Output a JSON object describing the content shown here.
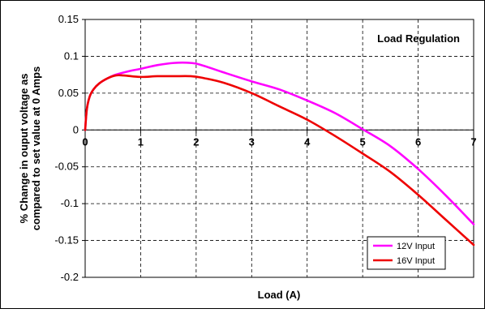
{
  "chart_data": {
    "type": "line",
    "title": "",
    "annotation": "Load Regulation",
    "xlabel": "Load (A)",
    "ylabel_lines": [
      "% Change in ouput  voltage as",
      "compared to set value at 0 Amps"
    ],
    "xlim": [
      0,
      7
    ],
    "ylim": [
      -0.2,
      0.15
    ],
    "xticks": [
      0,
      1,
      2,
      3,
      4,
      5,
      6,
      7
    ],
    "yticks": [
      -0.2,
      -0.15,
      -0.1,
      -0.05,
      0,
      0.05,
      0.1,
      0.15
    ],
    "ytick_labels": [
      "-0.2",
      "-0.15",
      "-0.1",
      "-0.05",
      "0",
      "0.05",
      "0.1",
      "0.15"
    ],
    "grid": true,
    "legend_position": "bottom-right",
    "series": [
      {
        "name": "12V Input",
        "color": "#ff00ff",
        "x": [
          0,
          0.03,
          0.08,
          0.15,
          0.25,
          0.4,
          0.55,
          0.8,
          1.0,
          1.3,
          1.6,
          1.9,
          2.1,
          2.5,
          3.0,
          3.5,
          4.0,
          4.5,
          5.0,
          5.5,
          6.0,
          6.5,
          7.0
        ],
        "y": [
          0,
          0.028,
          0.045,
          0.055,
          0.063,
          0.07,
          0.075,
          0.08,
          0.083,
          0.088,
          0.091,
          0.091,
          0.088,
          0.078,
          0.066,
          0.055,
          0.04,
          0.023,
          0.001,
          -0.022,
          -0.053,
          -0.089,
          -0.128
        ]
      },
      {
        "name": "16V Input",
        "color": "#ee0000",
        "x": [
          0,
          0.03,
          0.08,
          0.15,
          0.25,
          0.4,
          0.55,
          0.7,
          1.0,
          1.3,
          1.6,
          1.9,
          2.1,
          2.5,
          3.0,
          3.5,
          4.0,
          4.5,
          5.0,
          5.5,
          6.0,
          6.5,
          7.0
        ],
        "y": [
          0,
          0.028,
          0.045,
          0.055,
          0.063,
          0.07,
          0.074,
          0.074,
          0.072,
          0.073,
          0.073,
          0.073,
          0.071,
          0.064,
          0.05,
          0.032,
          0.014,
          -0.008,
          -0.032,
          -0.057,
          -0.088,
          -0.122,
          -0.156
        ]
      }
    ]
  }
}
